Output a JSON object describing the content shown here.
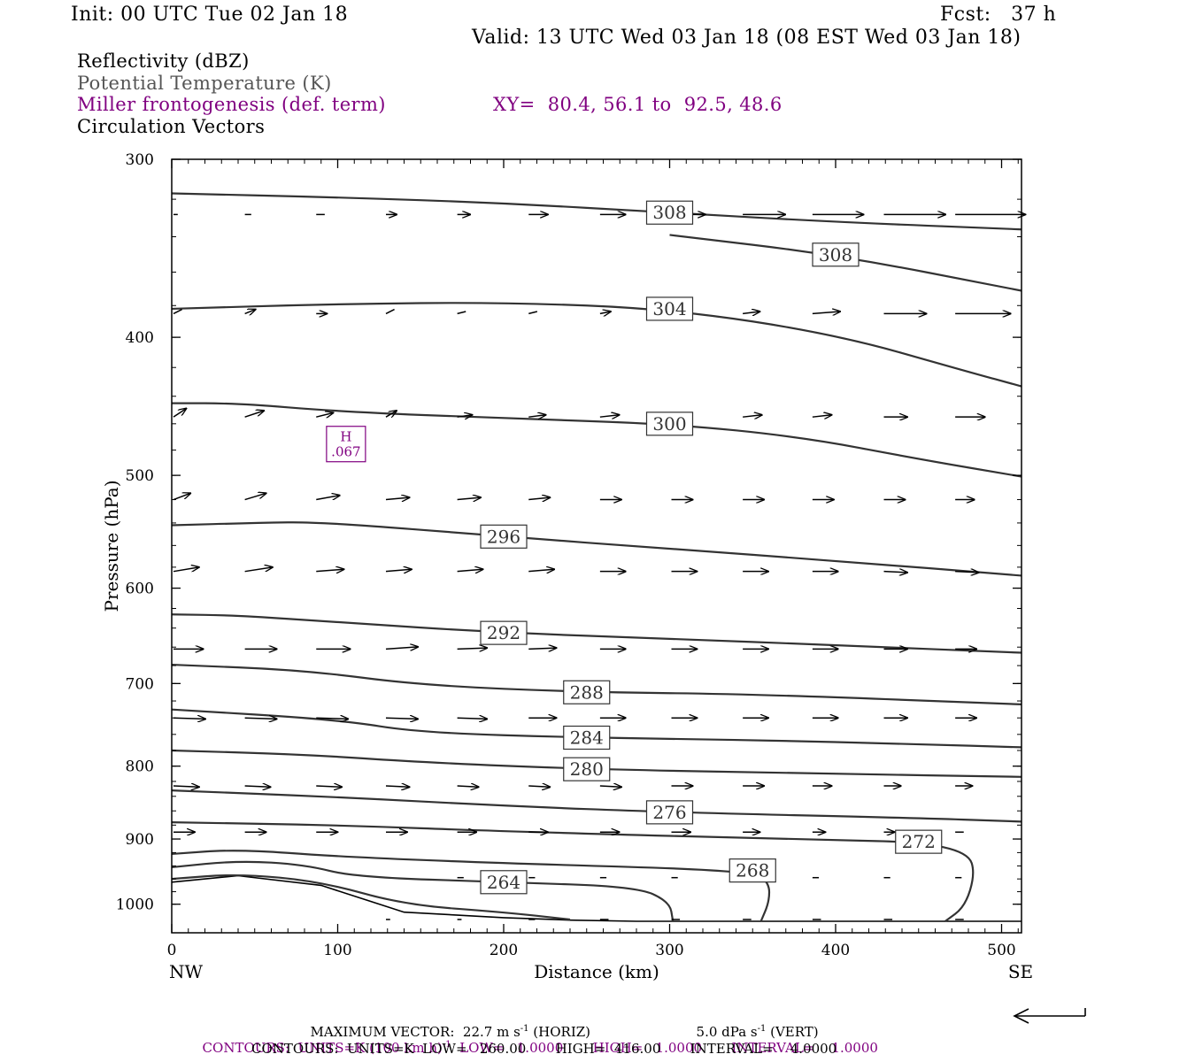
{
  "header": {
    "init": "Init: 00 UTC Tue 02 Jan 18",
    "fcst": "Fcst:   37 h",
    "valid": "Valid: 13 UTC Wed 03 Jan 18 (08 EST Wed 03 Jan 18)"
  },
  "fields": {
    "reflectivity": "Reflectivity (dBZ)",
    "theta": "Potential Temperature (K)",
    "frontogenesis": "Miller frontogenesis (def. term)",
    "xy": "XY=  80.4, 56.1 to  92.5, 48.6",
    "circulation": "Circulation Vectors"
  },
  "colors": {
    "frontogenesis": "#800080",
    "theta": "#333333",
    "axis": "#000000"
  },
  "chart_data": {
    "type": "line",
    "xlabel": "Distance (km)",
    "ylabel": "Pressure (hPa)",
    "xlim": [
      0,
      512
    ],
    "ylim": [
      300,
      1028
    ],
    "y_scale": "log",
    "x_ticks": [
      "0",
      "100",
      "200",
      "300",
      "400",
      "500"
    ],
    "y_ticks": [
      "300",
      "400",
      "500",
      "600",
      "700",
      "800",
      "900",
      "1000"
    ],
    "x_end_labels": {
      "left": "NW",
      "right": "SE"
    },
    "max_marker": {
      "label": "H",
      "value": ".067",
      "x": 105,
      "p": 476
    },
    "theta_contours": [
      {
        "level": 308,
        "label": "308",
        "points": [
          [
            0,
            317
          ],
          [
            100,
            319
          ],
          [
            200,
            322
          ],
          [
            300,
            327
          ],
          [
            400,
            332
          ],
          [
            512,
            336
          ]
        ]
      },
      {
        "level": 308,
        "label": "308",
        "points": [
          [
            300,
            339
          ],
          [
            400,
            350
          ],
          [
            512,
            371
          ]
        ]
      },
      {
        "level": 304,
        "label": "304",
        "points": [
          [
            0,
            382
          ],
          [
            100,
            379
          ],
          [
            200,
            378
          ],
          [
            300,
            382
          ],
          [
            400,
            398
          ],
          [
            480,
            423
          ],
          [
            512,
            433
          ]
        ]
      },
      {
        "level": 300,
        "label": "300",
        "points": [
          [
            0,
            445
          ],
          [
            40,
            445
          ],
          [
            100,
            451
          ],
          [
            200,
            456
          ],
          [
            300,
            460
          ],
          [
            380,
            470
          ],
          [
            450,
            487
          ],
          [
            512,
            501
          ]
        ]
      },
      {
        "level": 296,
        "label": "296",
        "points": [
          [
            0,
            542
          ],
          [
            50,
            540
          ],
          [
            90,
            539
          ],
          [
            200,
            552
          ],
          [
            300,
            563
          ],
          [
            400,
            574
          ],
          [
            512,
            588
          ]
        ]
      },
      {
        "level": 292,
        "label": "292",
        "points": [
          [
            0,
            626
          ],
          [
            40,
            627
          ],
          [
            100,
            634
          ],
          [
            200,
            645
          ],
          [
            300,
            651
          ],
          [
            400,
            658
          ],
          [
            512,
            666
          ]
        ]
      },
      {
        "level": 288,
        "label": "288",
        "points": [
          [
            0,
            679
          ],
          [
            80,
            685
          ],
          [
            150,
            702
          ],
          [
            250,
            710
          ],
          [
            350,
            712
          ],
          [
            512,
            724
          ]
        ]
      },
      {
        "level": 284,
        "label": "284",
        "points": [
          [
            0,
            730
          ],
          [
            100,
            742
          ],
          [
            150,
            758
          ],
          [
            250,
            764
          ],
          [
            350,
            767
          ],
          [
            450,
            772
          ],
          [
            512,
            776
          ]
        ]
      },
      {
        "level": 280,
        "label": "280",
        "points": [
          [
            0,
            780
          ],
          [
            80,
            785
          ],
          [
            150,
            795
          ],
          [
            250,
            804
          ],
          [
            400,
            810
          ],
          [
            512,
            814
          ]
        ]
      },
      {
        "level": 276,
        "label": "276",
        "points": [
          [
            0,
            832
          ],
          [
            100,
            841
          ],
          [
            200,
            853
          ],
          [
            300,
            862
          ],
          [
            450,
            870
          ],
          [
            512,
            875
          ]
        ]
      },
      {
        "level": 272,
        "label": "272",
        "points": [
          [
            0,
            876
          ],
          [
            100,
            880
          ],
          [
            200,
            889
          ],
          [
            400,
            902
          ],
          [
            450,
            904
          ],
          [
            480,
            920
          ],
          [
            484,
            952
          ],
          [
            478,
            1004
          ],
          [
            466,
            1028
          ]
        ]
      },
      {
        "level": 268,
        "label": "268",
        "points": [
          [
            0,
            922
          ],
          [
            40,
            915
          ],
          [
            100,
            926
          ],
          [
            200,
            936
          ],
          [
            350,
            947
          ],
          [
            360,
            966
          ],
          [
            360,
            996
          ],
          [
            355,
            1028
          ]
        ]
      },
      {
        "level": 264,
        "label": "264",
        "points": [
          [
            0,
            942
          ],
          [
            40,
            932
          ],
          [
            80,
            938
          ],
          [
            110,
            957
          ],
          [
            200,
            965
          ],
          [
            280,
            972
          ],
          [
            300,
            996
          ],
          [
            302,
            1028
          ]
        ]
      },
      {
        "level": 260,
        "label": "",
        "points": [
          [
            0,
            960
          ],
          [
            40,
            952
          ],
          [
            90,
            964
          ],
          [
            140,
            1001
          ],
          [
            200,
            1013
          ],
          [
            240,
            1025
          ]
        ]
      }
    ],
    "terrain": [
      [
        0,
        965
      ],
      [
        40,
        955
      ],
      [
        90,
        970
      ],
      [
        140,
        1013
      ],
      [
        200,
        1022
      ],
      [
        240,
        1026
      ],
      [
        280,
        1028
      ],
      [
        512,
        1028
      ]
    ],
    "vector_rows": [
      {
        "p": 328,
        "xs": [
          0,
          43,
          86,
          128,
          171,
          214,
          257,
          300,
          343,
          385,
          428,
          471
        ],
        "u": [
          0.2,
          0.3,
          0.4,
          0.5,
          0.6,
          0.9,
          1.2,
          1.6,
          2.0,
          2.4,
          2.9,
          3.3
        ],
        "w": [
          0,
          0,
          0,
          0,
          0,
          0,
          0,
          0,
          0,
          0,
          0,
          0
        ]
      },
      {
        "p": 385,
        "xs": [
          0,
          43,
          86,
          128,
          171,
          214,
          257,
          300,
          343,
          385,
          428,
          471
        ],
        "u": [
          0.4,
          0.5,
          0.5,
          0.4,
          0.4,
          0.4,
          0.5,
          0.6,
          0.8,
          1.3,
          2.0,
          2.6
        ],
        "w": [
          0.2,
          0.2,
          0,
          0.2,
          0.1,
          0.1,
          0.1,
          0.1,
          0.1,
          0.1,
          0,
          0
        ]
      },
      {
        "p": 455,
        "xs": [
          0,
          43,
          86,
          128,
          171,
          214,
          257,
          300,
          343,
          385,
          428,
          471
        ],
        "u": [
          0.6,
          0.9,
          0.8,
          0.5,
          0.7,
          0.8,
          0.9,
          0.9,
          0.9,
          0.9,
          1.1,
          1.4
        ],
        "w": [
          0.4,
          0.3,
          0.2,
          0.3,
          0.1,
          0.1,
          0.1,
          0.1,
          0.1,
          0.1,
          0,
          0
        ]
      },
      {
        "p": 520,
        "xs": [
          0,
          43,
          86,
          128,
          171,
          214,
          257,
          300,
          343,
          385,
          428,
          471
        ],
        "u": [
          0.8,
          1.0,
          1.1,
          1.1,
          1.1,
          1.0,
          1.0,
          1.0,
          1.0,
          1.0,
          1.0,
          0.9
        ],
        "w": [
          0.3,
          0.3,
          0.2,
          0.1,
          0.1,
          0.1,
          0,
          0,
          0,
          0,
          0,
          0
        ]
      },
      {
        "p": 584,
        "xs": [
          0,
          43,
          86,
          128,
          171,
          214,
          257,
          300,
          343,
          385,
          428,
          471
        ],
        "u": [
          1.2,
          1.3,
          1.3,
          1.2,
          1.2,
          1.2,
          1.2,
          1.2,
          1.2,
          1.2,
          1.1,
          1.1
        ],
        "w": [
          0.2,
          0.2,
          0.1,
          0.1,
          0.1,
          0.1,
          0,
          0,
          0,
          0,
          -0.05,
          -0.05
        ]
      },
      {
        "p": 662,
        "xs": [
          0,
          43,
          86,
          128,
          171,
          214,
          257,
          300,
          343,
          385,
          428,
          471
        ],
        "u": [
          1.4,
          1.5,
          1.6,
          1.5,
          1.4,
          1.3,
          1.2,
          1.2,
          1.2,
          1.2,
          1.1,
          1.0
        ],
        "w": [
          0,
          0,
          0,
          0.1,
          0.05,
          0.05,
          0,
          0,
          0,
          0,
          0,
          0
        ]
      },
      {
        "p": 740,
        "xs": [
          0,
          43,
          86,
          128,
          171,
          214,
          257,
          300,
          343,
          385,
          428,
          471
        ],
        "u": [
          1.5,
          1.5,
          1.5,
          1.5,
          1.4,
          1.3,
          1.2,
          1.2,
          1.2,
          1.2,
          1.1,
          1.0
        ],
        "w": [
          -0.05,
          -0.05,
          -0.05,
          -0.05,
          -0.05,
          0,
          0,
          0,
          0,
          0,
          0,
          0
        ]
      },
      {
        "p": 826,
        "xs": [
          0,
          43,
          86,
          128,
          171,
          214,
          257,
          300,
          343,
          385,
          428,
          471
        ],
        "u": [
          1.2,
          1.2,
          1.2,
          1.1,
          1.0,
          1.0,
          1.0,
          1.0,
          1.0,
          0.9,
          0.8,
          0.8
        ],
        "w": [
          -0.05,
          -0.05,
          -0.05,
          -0.05,
          -0.05,
          -0.05,
          -0.05,
          0,
          0,
          0,
          0,
          0
        ]
      },
      {
        "p": 890,
        "xs": [
          0,
          43,
          86,
          128,
          171,
          214,
          257,
          300,
          343,
          385,
          428,
          471
        ],
        "u": [
          1.0,
          1.0,
          1.0,
          1.0,
          0.9,
          0.9,
          0.9,
          0.9,
          0.8,
          0.6,
          0.5,
          0.4
        ],
        "w": [
          0,
          0,
          0,
          0,
          0,
          0,
          0,
          0,
          0,
          0,
          0,
          0
        ]
      },
      {
        "p": 958,
        "xs": [
          171,
          214,
          257,
          300,
          343,
          385,
          428,
          471
        ],
        "u": [
          0.3,
          0.3,
          0.3,
          0.3,
          0.3,
          0.3,
          0.3,
          0.3
        ],
        "w": [
          0,
          0,
          0,
          0,
          0,
          0,
          0,
          0
        ]
      },
      {
        "p": 1025,
        "xs": [
          128,
          171,
          214,
          257,
          300,
          343,
          385,
          428,
          471
        ],
        "u": [
          0.2,
          0.2,
          0.3,
          0.4,
          0.4,
          0.4,
          0.4,
          0.4,
          0.4
        ],
        "w": [
          0,
          0,
          0,
          0,
          0,
          0,
          0,
          0,
          0
        ]
      }
    ]
  },
  "footer": {
    "max_vector": "MAXIMUM VECTOR:  22.7 m s",
    "max_vector_exp": "-1",
    "max_vector_horiz": " (HORIZ)",
    "max_vector_vert": "5.0 dPa s",
    "max_vector_vert_exp": "-1",
    "max_vector_vert_unit": " (VERT)",
    "contours1_a": "CONTOURS:  UNITS=K (100 km h)",
    "contours1_exp": "-1",
    "contours1_b": "  LOW=   1.0000       HIGH=   1.0000       INTERVAL=    1.0000",
    "contours2": "CONTOURS:  UNITS=K  LOW=   260.00       HIGH=  416.00       INTERVAL=    4.0000"
  }
}
